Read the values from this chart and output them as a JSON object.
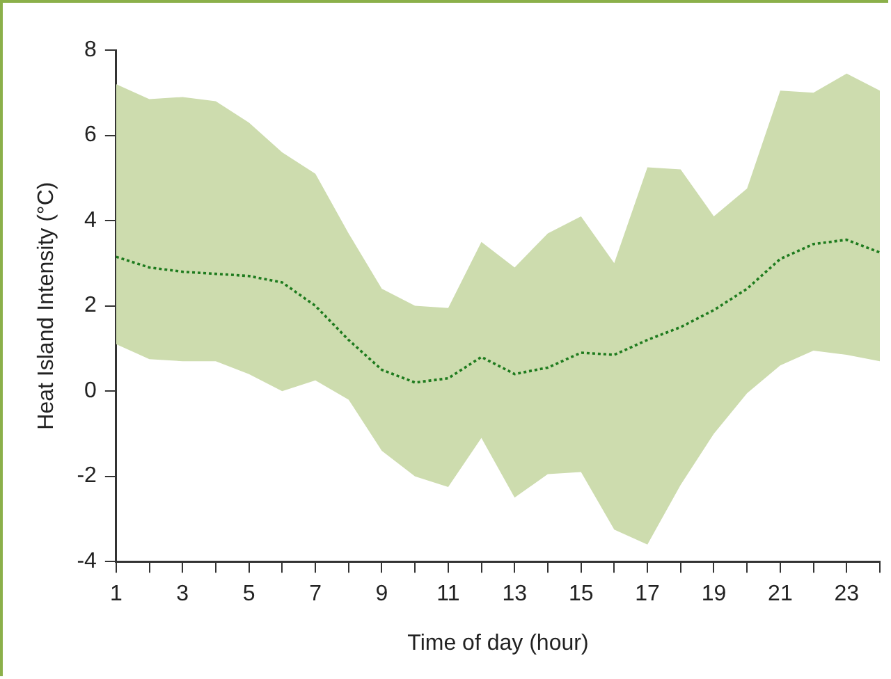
{
  "chart_data": {
    "type": "line",
    "xlabel": "Time of day (hour)",
    "ylabel": "Heat Island Intensity (°C)",
    "x": [
      1,
      2,
      3,
      4,
      5,
      6,
      7,
      8,
      9,
      10,
      11,
      12,
      13,
      14,
      15,
      16,
      17,
      18,
      19,
      20,
      21,
      22,
      23,
      24
    ],
    "series": [
      {
        "color": "#1e7b1e",
        "line_style": "dotted",
        "values": [
          3.15,
          2.9,
          2.8,
          2.75,
          2.7,
          2.55,
          2.0,
          1.2,
          0.5,
          0.2,
          0.3,
          0.8,
          0.4,
          0.55,
          0.9,
          0.85,
          1.2,
          1.5,
          1.9,
          2.4,
          3.1,
          3.45,
          3.55,
          3.25
        ],
        "lower": [
          1.1,
          0.75,
          0.7,
          0.7,
          0.4,
          0.0,
          0.25,
          -0.2,
          -1.4,
          -2.0,
          -2.25,
          -1.1,
          -2.5,
          -1.95,
          -1.9,
          -3.25,
          -3.6,
          -2.2,
          -1.0,
          -0.05,
          0.6,
          0.95,
          0.85,
          0.7
        ],
        "upper": [
          7.2,
          6.85,
          6.9,
          6.8,
          6.3,
          5.6,
          5.1,
          3.7,
          2.4,
          2.0,
          1.95,
          3.5,
          2.9,
          3.7,
          4.1,
          3.0,
          5.25,
          5.2,
          4.1,
          4.75,
          7.05,
          7.0,
          7.45,
          7.05
        ]
      }
    ],
    "xlim": [
      1,
      24
    ],
    "xticks": [
      1,
      {
        "value": 2,
        "label": null
      },
      3,
      {
        "value": 4,
        "label": null
      },
      5,
      {
        "value": 6,
        "label": null
      },
      7,
      {
        "value": 8,
        "label": null
      },
      9,
      {
        "value": 10,
        "label": null
      },
      11,
      {
        "value": 12,
        "label": null
      },
      13,
      {
        "value": 14,
        "label": null
      },
      15,
      {
        "value": 16,
        "label": null
      },
      17,
      {
        "value": 18,
        "label": null
      },
      19,
      {
        "value": 20,
        "label": null
      },
      21,
      {
        "value": 22,
        "label": null
      },
      23,
      {
        "value": 24,
        "label": null
      }
    ],
    "ylim": [
      -4,
      8
    ],
    "yticks": [
      -4,
      -2,
      0,
      2,
      4,
      6,
      8
    ],
    "grid": false,
    "legend": false,
    "marker": "none"
  }
}
